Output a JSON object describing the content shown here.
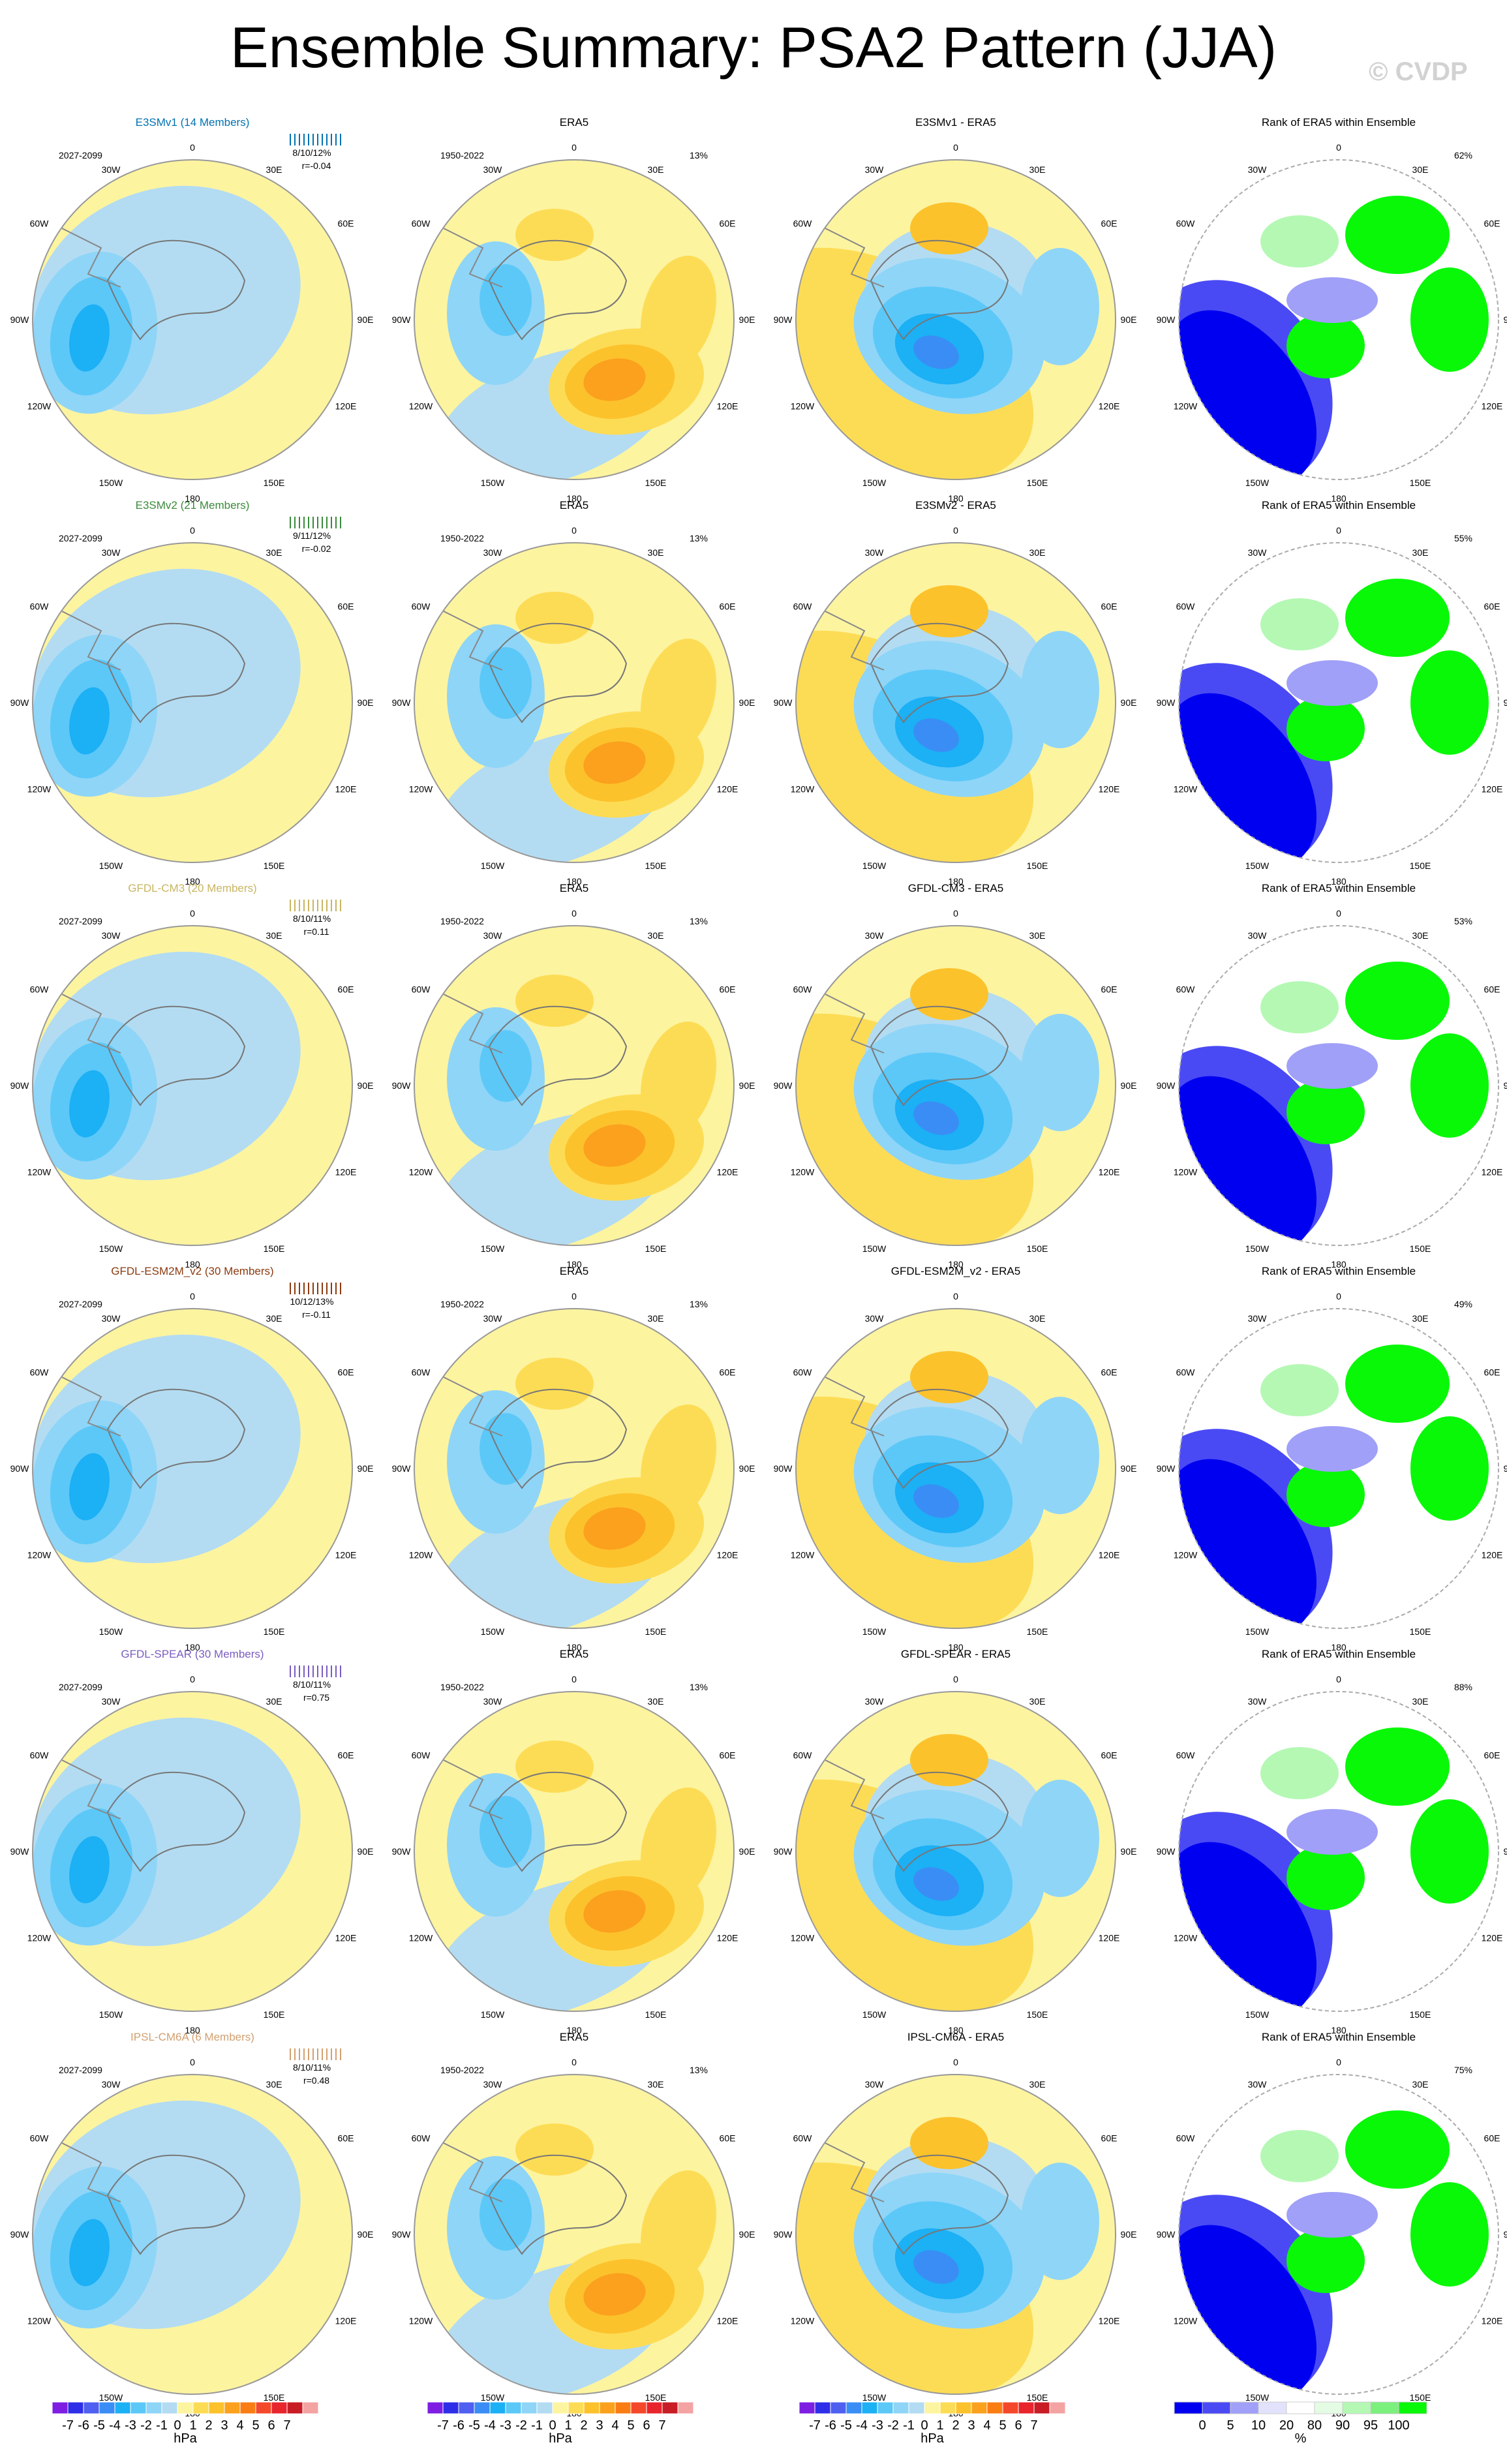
{
  "title": "Ensemble Summary: PSA2 Pattern (JJA)",
  "credit": "© CVDP",
  "colors": {
    "ocean_blue": "#b3dcf2",
    "light_yellow": "#fdf4a0",
    "obs_label": "#000000"
  },
  "chart_data": {
    "type": "polar-map-panel-grid",
    "projection": "south polar stereographic",
    "columns": [
      "model ensemble",
      "ERA5",
      "model - ERA5",
      "Rank of ERA5 within Ensemble"
    ],
    "lon_labels": [
      "0",
      "30E",
      "60E",
      "90E",
      "120E",
      "150E",
      "180",
      "150W",
      "120W",
      "90W",
      "60W",
      "30W"
    ],
    "obs_period": "1950-2022",
    "obs_pct": "13%",
    "model_period": "2027-2099",
    "rows": [
      {
        "model": "E3SMv1",
        "model_title": "E3SMv1 (14 Members)",
        "title_color": "#0072b2",
        "stats": "8/10/12%",
        "r": "r=-0.04",
        "diff_title": "E3SMv1 - ERA5",
        "rank_title": "Rank of ERA5 within Ensemble",
        "rank_pct": "62%"
      },
      {
        "model": "E3SMv2",
        "model_title": "E3SMv2 (21 Members)",
        "title_color": "#3a8a3a",
        "stats": "9/11/12%",
        "r": "r=-0.02",
        "diff_title": "E3SMv2 - ERA5",
        "rank_title": "Rank of ERA5 within Ensemble",
        "rank_pct": "55%"
      },
      {
        "model": "GFDL-CM3",
        "model_title": "GFDL-CM3 (20 Members)",
        "title_color": "#c8b560",
        "stats": "8/10/11%",
        "r": "r=0.11",
        "diff_title": "GFDL-CM3 - ERA5",
        "rank_title": "Rank of ERA5 within Ensemble",
        "rank_pct": "53%"
      },
      {
        "model": "GFDL-ESM2M_v2",
        "model_title": "GFDL-ESM2M_v2 (30 Members)",
        "title_color": "#8b3a0f",
        "stats": "10/12/13%",
        "r": "r=-0.11",
        "diff_title": "GFDL-ESM2M_v2 - ERA5",
        "rank_title": "Rank of ERA5 within Ensemble",
        "rank_pct": "49%"
      },
      {
        "model": "GFDL-SPEAR",
        "model_title": "GFDL-SPEAR (30 Members)",
        "title_color": "#7a5cc0",
        "stats": "8/10/11%",
        "r": "r=0.75",
        "diff_title": "GFDL-SPEAR - ERA5",
        "rank_title": "Rank of ERA5 within Ensemble",
        "rank_pct": "88%"
      },
      {
        "model": "IPSL-CM6A",
        "model_title": "IPSL-CM6A (6 Members)",
        "title_color": "#d2a070",
        "stats": "8/10/11%",
        "r": "r=0.48",
        "diff_title": "IPSL-CM6A - ERA5",
        "rank_title": "Rank of ERA5 within Ensemble",
        "rank_pct": "75%"
      }
    ],
    "colorbar_hpa": {
      "labels": [
        "-7",
        "-6",
        "-5",
        "-4",
        "-3",
        "-2",
        "-1",
        "0",
        "1",
        "2",
        "3",
        "4",
        "5",
        "6",
        "7"
      ],
      "colors": [
        "#7e1ee2",
        "#2e2ee8",
        "#4f5ff0",
        "#3a8df5",
        "#1cb0f5",
        "#5cc8f8",
        "#8fd5f7",
        "#b3dcf2",
        "#fdf4a0",
        "#fddc55",
        "#fcc22c",
        "#fba11e",
        "#fa7d14",
        "#f4482a",
        "#e8242c",
        "#c81d24",
        "#f4a3a3"
      ],
      "unit": "hPa"
    },
    "colorbar_rank": {
      "labels": [
        "0",
        "5",
        "10",
        "20",
        "80",
        "90",
        "95",
        "100"
      ],
      "colors": [
        "#0000f0",
        "#4a4af5",
        "#a0a0f8",
        "#e2e2fc",
        "#ffffff",
        "#e4fce4",
        "#b4f8b4",
        "#7cf07c",
        "#08f808"
      ],
      "unit": "%"
    }
  }
}
